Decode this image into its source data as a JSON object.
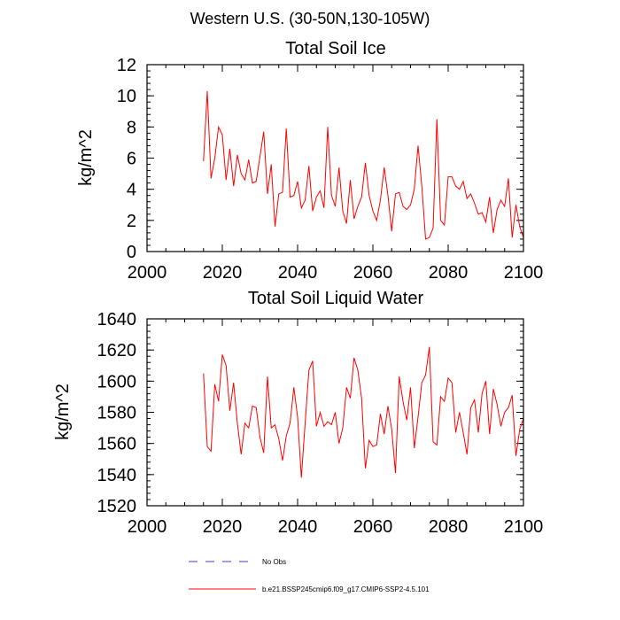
{
  "figure": {
    "title": "Western U.S. (30-50N,130-105W)",
    "legend": [
      {
        "label": "No Obs",
        "color": "#3b3bd6",
        "style": "dashed"
      },
      {
        "label": "b.e21.BSSP245cmip6.f09_g17.CMIP6-SSP2-4.5.101",
        "color": "#ff0000",
        "style": "solid"
      }
    ]
  },
  "chart_data": [
    {
      "type": "line",
      "title": "Total Soil Ice",
      "xlabel": "",
      "ylabel": "kg/m^2",
      "xlim": [
        2000,
        2100
      ],
      "ylim": [
        0,
        12
      ],
      "xticks": [
        2000,
        2020,
        2040,
        2060,
        2080,
        2100
      ],
      "yticks": [
        0,
        2,
        4,
        6,
        8,
        10,
        12
      ],
      "x_start": 2015,
      "series": [
        {
          "name": "b.e21.BSSP245cmip6.f09_g17.CMIP6-SSP2-4.5.101",
          "color": "#ff0000",
          "values": [
            5.8,
            10.3,
            4.7,
            6.0,
            8.0,
            7.5,
            4.6,
            6.6,
            4.2,
            6.2,
            5.0,
            4.6,
            5.9,
            4.4,
            4.5,
            6.1,
            7.7,
            3.7,
            5.6,
            1.6,
            3.7,
            3.8,
            7.9,
            3.5,
            3.6,
            4.5,
            2.8,
            3.3,
            5.5,
            2.6,
            3.5,
            3.9,
            2.8,
            8.0,
            3.6,
            2.9,
            5.4,
            2.6,
            1.8,
            4.6,
            2.1,
            2.9,
            3.5,
            5.7,
            3.6,
            2.6,
            2.0,
            3.3,
            5.4,
            3.6,
            1.3,
            3.7,
            3.8,
            2.9,
            2.7,
            3.0,
            4.0,
            6.8,
            4.2,
            0.8,
            0.9,
            1.5,
            8.5,
            2.0,
            1.7,
            4.8,
            4.8,
            4.2,
            4.0,
            4.5,
            3.4,
            3.7,
            3.1,
            2.4,
            2.5,
            1.9,
            3.5,
            1.2,
            2.7,
            3.3,
            2.9,
            4.7,
            0.9,
            3.0,
            1.6,
            0.9
          ]
        }
      ]
    },
    {
      "type": "line",
      "title": "Total Soil Liquid Water",
      "xlabel": "",
      "ylabel": "kg/m^2",
      "xlim": [
        2000,
        2100
      ],
      "ylim": [
        1520,
        1640
      ],
      "xticks": [
        2000,
        2020,
        2040,
        2060,
        2080,
        2100
      ],
      "yticks": [
        1520,
        1540,
        1560,
        1580,
        1600,
        1620,
        1640
      ],
      "x_start": 2015,
      "series": [
        {
          "name": "b.e21.BSSP245cmip6.f09_g17.CMIP6-SSP2-4.5.101",
          "color": "#ff0000",
          "values": [
            1605,
            1558,
            1555,
            1598,
            1587,
            1617,
            1610,
            1581,
            1599,
            1573,
            1553,
            1573,
            1570,
            1584,
            1583,
            1564,
            1554,
            1603,
            1570,
            1572,
            1563,
            1549,
            1565,
            1573,
            1596,
            1577,
            1538,
            1573,
            1607,
            1613,
            1571,
            1580,
            1571,
            1574,
            1572,
            1580,
            1560,
            1570,
            1596,
            1589,
            1615,
            1607,
            1589,
            1544,
            1562,
            1558,
            1559,
            1579,
            1566,
            1584,
            1569,
            1541,
            1603,
            1587,
            1575,
            1596,
            1557,
            1577,
            1599,
            1604,
            1622,
            1561,
            1559,
            1590,
            1587,
            1602,
            1599,
            1567,
            1580,
            1567,
            1553,
            1583,
            1588,
            1567,
            1592,
            1600,
            1566,
            1595,
            1585,
            1571,
            1580,
            1583,
            1591,
            1552,
            1569,
            1576
          ]
        }
      ]
    }
  ]
}
